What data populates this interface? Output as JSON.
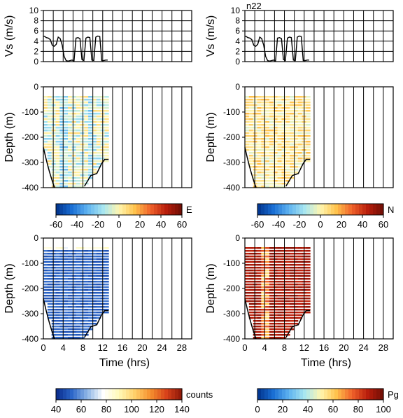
{
  "label": "n22",
  "colors": {
    "div": [
      "#00318a",
      "#1a6fd4",
      "#5fb3f0",
      "#a8e6f0",
      "#fff6b0",
      "#ffc34d",
      "#f0622a",
      "#b81e0c",
      "#6e0d05"
    ],
    "counts": [
      "#082a8a",
      "#2c66c8",
      "#8fb6e6",
      "#ffffff",
      "#fff9b8",
      "#ffd06a",
      "#f5902e",
      "#d8421a",
      "#8c1608"
    ]
  },
  "chart_data": [
    {
      "type": "line",
      "panel": "vs-left",
      "ylabel": "Vs (m/s)",
      "ylim": [
        0,
        10
      ],
      "yticks": [
        "0",
        "2",
        "4",
        "6",
        "8",
        "10"
      ],
      "x": [
        0,
        0.3,
        0.6,
        1.0,
        1.4,
        1.8,
        2.2,
        2.6,
        3.0,
        3.4,
        3.8,
        4.2,
        4.6,
        5.0,
        5.4,
        5.8,
        6.2,
        6.6,
        7.0,
        7.4,
        7.8,
        8.2,
        8.6,
        9.0,
        9.4,
        9.8,
        10.2,
        10.6,
        11.0,
        11.4,
        11.8,
        12.2,
        12.6,
        13.0
      ],
      "y": [
        5.0,
        4.9,
        4.7,
        4.6,
        4.3,
        3.2,
        3.0,
        3.4,
        4.8,
        4.5,
        3.2,
        1.0,
        0.2,
        0.1,
        0.2,
        0.3,
        0.1,
        4.6,
        4.7,
        4.5,
        0.4,
        0.2,
        4.6,
        4.8,
        4.7,
        0.3,
        0.2,
        4.8,
        5.0,
        4.9,
        0.2,
        0.2,
        0.3,
        0.3
      ]
    },
    {
      "type": "line",
      "panel": "vs-right",
      "ylabel": "Vs (m/s)",
      "ylim": [
        0,
        10
      ],
      "yticks": [
        "0",
        "2",
        "4",
        "6",
        "8",
        "10"
      ],
      "x": [
        0,
        0.3,
        0.6,
        1.0,
        1.4,
        1.8,
        2.2,
        2.6,
        3.0,
        3.4,
        3.8,
        4.2,
        4.6,
        5.0,
        5.4,
        5.8,
        6.2,
        6.6,
        7.0,
        7.4,
        7.8,
        8.2,
        8.6,
        9.0,
        9.4,
        9.8,
        10.2,
        10.6,
        11.0,
        11.4,
        11.8,
        12.2,
        12.6,
        13.0
      ],
      "y": [
        5.0,
        4.9,
        4.7,
        4.6,
        4.3,
        3.2,
        3.0,
        3.4,
        4.8,
        4.5,
        3.2,
        1.0,
        0.2,
        0.1,
        0.2,
        0.3,
        0.1,
        4.6,
        4.7,
        4.5,
        0.4,
        0.2,
        4.6,
        4.8,
        4.7,
        0.3,
        0.2,
        4.8,
        5.0,
        4.9,
        0.2,
        0.2,
        0.3,
        0.3
      ]
    },
    {
      "type": "heatmap",
      "panel": "E",
      "ylabel": "Depth (m)",
      "ylim": [
        -400,
        0
      ],
      "yticks": [
        "0",
        "-100",
        "-200",
        "-300",
        "-400"
      ],
      "colorbar": {
        "label": "E",
        "ticks": [
          "-60",
          "-40",
          "-20",
          "0",
          "20",
          "40",
          "60"
        ],
        "range": [
          -60,
          60
        ]
      }
    },
    {
      "type": "heatmap",
      "panel": "N",
      "ylabel": "Depth (m)",
      "ylim": [
        -400,
        0
      ],
      "yticks": [
        "0",
        "-100",
        "-200",
        "-300",
        "-400"
      ],
      "colorbar": {
        "label": "N",
        "ticks": [
          "-60",
          "-40",
          "-20",
          "0",
          "20",
          "40",
          "60"
        ],
        "range": [
          -60,
          60
        ]
      }
    },
    {
      "type": "heatmap",
      "panel": "counts",
      "ylabel": "Depth (m)",
      "xlabel": "Time (hrs)",
      "ylim": [
        -400,
        0
      ],
      "xlim": [
        0,
        30
      ],
      "yticks": [
        "0",
        "-100",
        "-200",
        "-300",
        "-400"
      ],
      "xticks": [
        "0",
        "4",
        "8",
        "12",
        "16",
        "20",
        "24",
        "28"
      ],
      "colorbar": {
        "label": "counts",
        "ticks": [
          "40",
          "60",
          "80",
          "100",
          "120",
          "140"
        ],
        "range": [
          40,
          140
        ]
      }
    },
    {
      "type": "heatmap",
      "panel": "Pg",
      "ylabel": "Depth (m)",
      "xlabel": "Time (hrs)",
      "ylim": [
        -400,
        0
      ],
      "xlim": [
        0,
        30
      ],
      "yticks": [
        "0",
        "-100",
        "-200",
        "-300",
        "-400"
      ],
      "xticks": [
        "0",
        "4",
        "8",
        "12",
        "16",
        "20",
        "24",
        "28"
      ],
      "colorbar": {
        "label": "Pg",
        "ticks": [
          "0",
          "20",
          "40",
          "60",
          "80",
          "100"
        ],
        "range": [
          0,
          100
        ]
      }
    }
  ]
}
